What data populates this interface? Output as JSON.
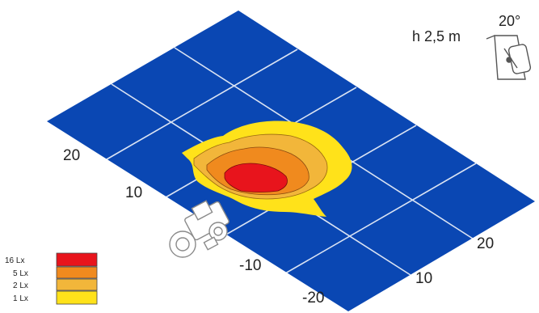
{
  "mounting": {
    "height": "h 2,5 m",
    "tilt": "20°",
    "lamp_icon": "work-lamp-icon"
  },
  "left_axis_labels": [
    "20",
    "10",
    "-10",
    "-20"
  ],
  "right_axis_labels": [
    "20",
    "10"
  ],
  "vehicle_icon": "tractor-icon",
  "ground_color": "#0a47b3",
  "legend": [
    {
      "label": "16 Lx",
      "color": "#e8141c"
    },
    {
      "label": "5 Lx",
      "color": "#f08a1e"
    },
    {
      "label": "2 Lx",
      "color": "#f2b63a"
    },
    {
      "label": "1 Lx",
      "color": "#ffe21a"
    }
  ]
}
